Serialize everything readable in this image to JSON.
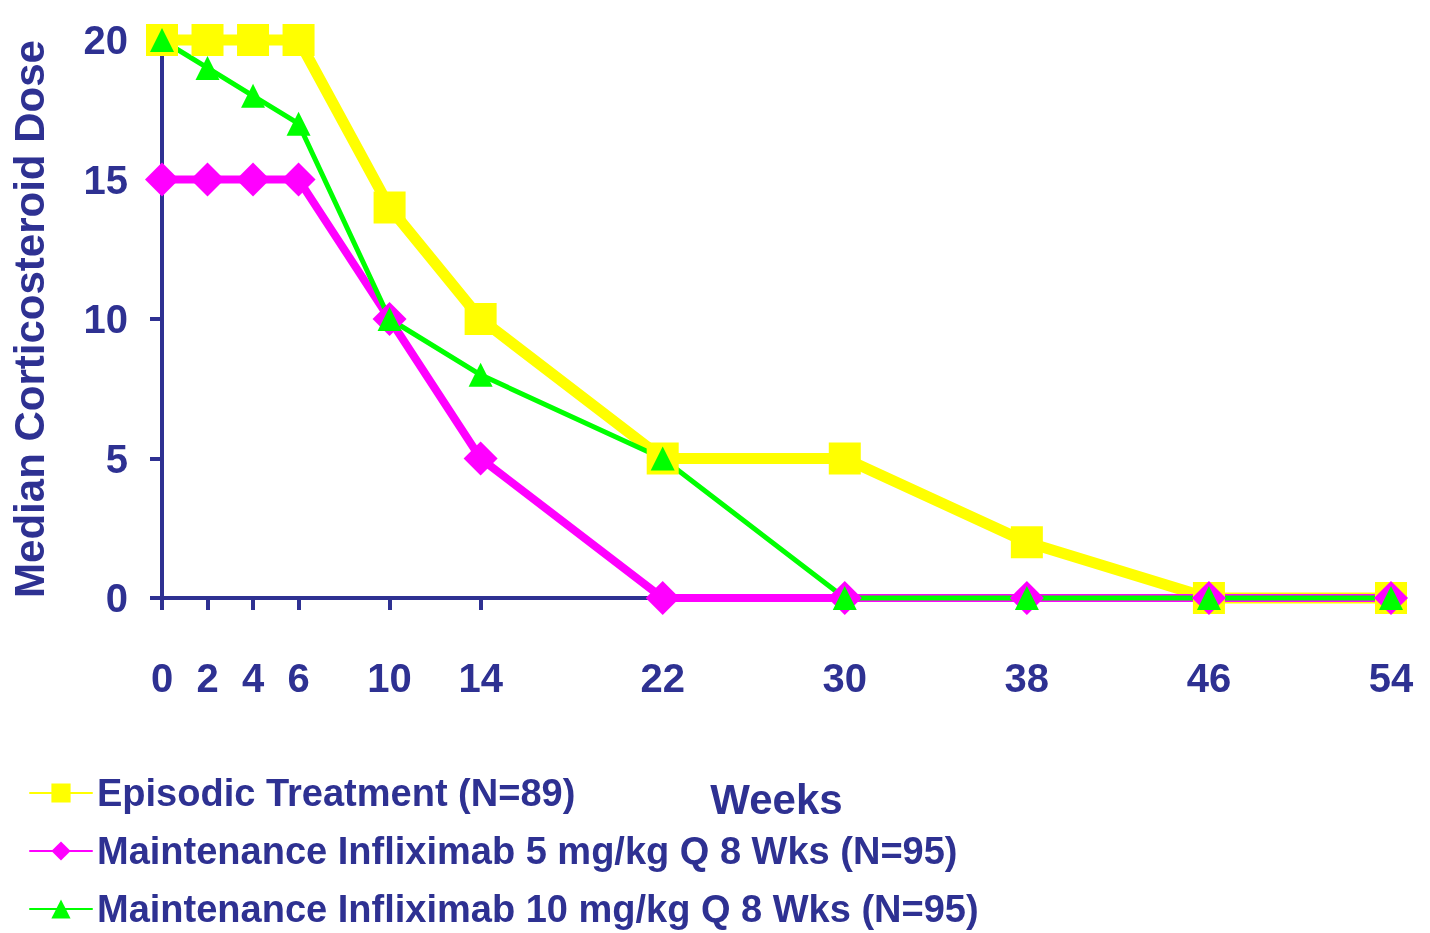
{
  "chart_data": {
    "type": "line",
    "xlabel": "Weeks",
    "ylabel": "Median Corticosteroid Dose",
    "x": [
      0,
      2,
      4,
      6,
      10,
      14,
      22,
      30,
      38,
      46,
      54
    ],
    "xlim": [
      0,
      54
    ],
    "xticks": [
      0,
      2,
      4,
      6,
      10,
      14,
      22,
      30,
      38,
      46,
      54
    ],
    "ylim": [
      0,
      20
    ],
    "yticks": [
      0,
      5,
      10,
      15,
      20
    ],
    "grid": false,
    "legend": "bottom left",
    "series": [
      {
        "name": "Episodic Treatment (N=89)",
        "color": "#ffff00",
        "marker": "square",
        "values": [
          20,
          20,
          20,
          20,
          14,
          10,
          5,
          5,
          2,
          0,
          0
        ]
      },
      {
        "name": "Maintenance Infliximab 5 mg/kg Q 8 Wks (N=95)",
        "color": "#ff00ff",
        "marker": "diamond",
        "values": [
          15,
          15,
          15,
          15,
          10,
          5,
          0,
          0,
          0,
          0,
          0
        ]
      },
      {
        "name": "Maintenance Infliximab 10 mg/kg Q 8 Wks (N=95)",
        "color": "#00ff00",
        "marker": "triangle",
        "values": [
          20,
          19,
          18,
          17,
          10,
          8,
          5,
          0,
          0,
          0,
          0
        ]
      }
    ]
  }
}
